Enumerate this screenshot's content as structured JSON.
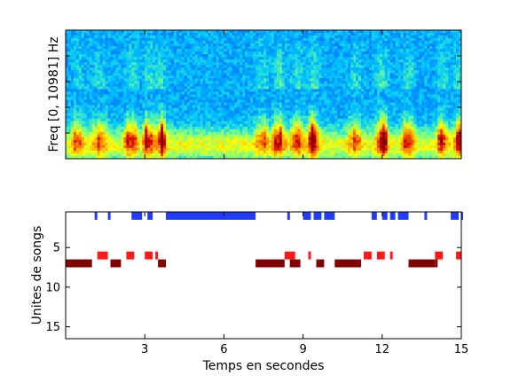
{
  "chart_data": [
    {
      "type": "heatmap",
      "ylabel": "Freq [0, 10981] Hz",
      "xlim": [
        0,
        15
      ],
      "colormap": [
        "#00008f",
        "#0060ff",
        "#00c8ff",
        "#70ff90",
        "#ffff00",
        "#ff8000",
        "#d00000",
        "#800000"
      ],
      "energy_bursts": [
        {
          "t": 0.5,
          "intensity": 0.55
        },
        {
          "t": 1.3,
          "intensity": 0.7
        },
        {
          "t": 2.5,
          "intensity": 0.85
        },
        {
          "t": 3.2,
          "intensity": 0.95
        },
        {
          "t": 3.6,
          "intensity": 0.75
        },
        {
          "t": 7.5,
          "intensity": 0.7
        },
        {
          "t": 8.1,
          "intensity": 0.9
        },
        {
          "t": 8.8,
          "intensity": 0.8
        },
        {
          "t": 9.4,
          "intensity": 0.85
        },
        {
          "t": 11.0,
          "intensity": 0.65
        },
        {
          "t": 12.0,
          "intensity": 0.85
        },
        {
          "t": 13.0,
          "intensity": 0.7
        },
        {
          "t": 14.3,
          "intensity": 0.75
        },
        {
          "t": 14.9,
          "intensity": 0.6
        }
      ]
    },
    {
      "type": "heatmap",
      "xlabel": "Temps en secondes",
      "ylabel": "Unites de songs",
      "xlim": [
        0,
        15
      ],
      "ylim": [
        16.5,
        0.5
      ],
      "xticks": [
        3,
        6,
        9,
        12,
        15
      ],
      "yticks": [
        5,
        10,
        15
      ],
      "rows": [
        {
          "row": 1,
          "color": "#1f3cff",
          "segments": [
            [
              1.1,
              1.2
            ],
            [
              1.6,
              1.7
            ],
            [
              2.5,
              2.9
            ],
            [
              3.1,
              3.3
            ],
            [
              3.8,
              7.2
            ],
            [
              8.4,
              8.5
            ],
            [
              9.0,
              9.3
            ],
            [
              9.4,
              9.7
            ],
            [
              9.8,
              10.2
            ],
            [
              11.6,
              11.8
            ],
            [
              12.0,
              12.2
            ],
            [
              12.3,
              12.5
            ],
            [
              12.6,
              13.0
            ],
            [
              13.6,
              13.7
            ],
            [
              14.6,
              14.9
            ],
            [
              15.0,
              15.0
            ]
          ]
        },
        {
          "row": 6,
          "color": "#ff1a1a",
          "segments": [
            [
              1.2,
              1.6
            ],
            [
              2.3,
              2.6
            ],
            [
              3.0,
              3.3
            ],
            [
              3.4,
              3.5
            ],
            [
              8.3,
              8.7
            ],
            [
              9.2,
              9.3
            ],
            [
              11.3,
              11.6
            ],
            [
              11.8,
              12.1
            ],
            [
              12.3,
              12.4
            ],
            [
              14.0,
              14.3
            ],
            [
              14.8,
              15.0
            ]
          ]
        },
        {
          "row": 7,
          "color": "#800000",
          "segments": [
            [
              0.0,
              1.0
            ],
            [
              1.7,
              2.1
            ],
            [
              3.5,
              3.8
            ],
            [
              7.2,
              8.3
            ],
            [
              8.5,
              8.9
            ],
            [
              9.5,
              9.8
            ],
            [
              10.2,
              11.2
            ],
            [
              13.0,
              14.0
            ],
            [
              14.0,
              14.1
            ]
          ]
        }
      ]
    }
  ]
}
